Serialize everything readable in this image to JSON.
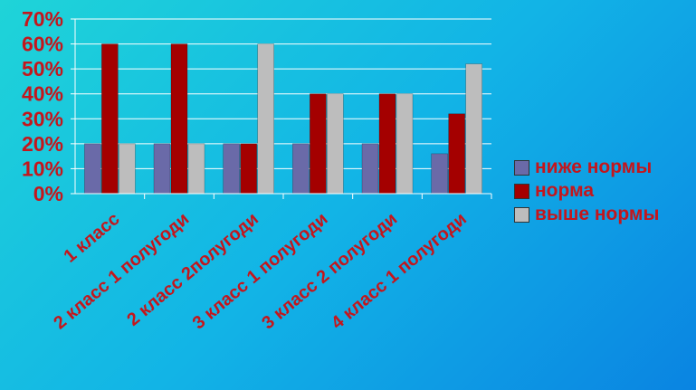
{
  "colors": {
    "text": "#c4161c",
    "series": [
      "#6a6aa8",
      "#a40000",
      "#bdbdbd"
    ]
  },
  "chart_data": {
    "type": "bar",
    "categories": [
      "1 класс",
      "2 класс 1 полугоди",
      "2 класс 2полугоди",
      "3 класс 1 полугоди",
      "3 класс 2 полугоди",
      "4 класс 1 полугоди"
    ],
    "series": [
      {
        "name": "ниже нормы",
        "values": [
          20,
          20,
          20,
          20,
          20,
          16
        ]
      },
      {
        "name": "норма",
        "values": [
          60,
          60,
          20,
          40,
          40,
          32
        ]
      },
      {
        "name": "выше нормы",
        "values": [
          20,
          20,
          60,
          40,
          40,
          52
        ]
      }
    ],
    "ylim": [
      0,
      70
    ],
    "yticks": [
      "0%",
      "10%",
      "20%",
      "30%",
      "40%",
      "50%",
      "60%",
      "70%"
    ],
    "grid": true,
    "legend": "right"
  }
}
